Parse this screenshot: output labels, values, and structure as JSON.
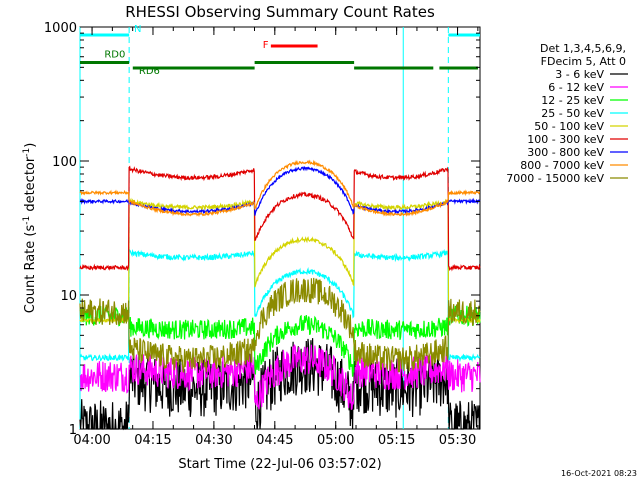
{
  "chart_data": {
    "type": "line",
    "title": "RHESSI Observing Summary Count Rates",
    "xlabel": "Start Time (22-Jul-06 03:57:02)",
    "ylabel_main": "Count Rate (s",
    "ylabel_sup1": "-1",
    "ylabel_mid": " detector",
    "ylabel_sup2": "-1",
    "ylabel_end": ")",
    "y_scale": "log",
    "ylim": [
      1,
      1000
    ],
    "xlim_minutes_after_start": [
      0,
      98.5
    ],
    "x_ticks": [
      {
        "label": "04:00",
        "t": 2.97
      },
      {
        "label": "04:15",
        "t": 17.97
      },
      {
        "label": "04:30",
        "t": 32.97
      },
      {
        "label": "04:45",
        "t": 47.97
      },
      {
        "label": "05:00",
        "t": 62.97
      },
      {
        "label": "05:15",
        "t": 77.97
      },
      {
        "label": "05:30",
        "t": 92.97
      }
    ],
    "y_ticks": [
      {
        "label": "1",
        "v": 1
      },
      {
        "label": "10",
        "v": 10
      },
      {
        "label": "100",
        "v": 100
      },
      {
        "label": "1000",
        "v": 1000
      }
    ],
    "legend_header": [
      "Det 1,3,4,5,6,9,",
      "FDecim 5, Att 0"
    ],
    "series": [
      {
        "name": "3 - 6 keV",
        "color": "#000000"
      },
      {
        "name": "6 - 12 keV",
        "color": "#ff00ff"
      },
      {
        "name": "12 - 25 keV",
        "color": "#00ff00"
      },
      {
        "name": "25 - 50 keV",
        "color": "#00ffff"
      },
      {
        "name": "50 - 100 keV",
        "color": "#d4d400"
      },
      {
        "name": "100 - 300 keV",
        "color": "#e00000"
      },
      {
        "name": "300 - 800 keV",
        "color": "#0000ff"
      },
      {
        "name": "800 - 7000 keV",
        "color": "#ff8c00"
      },
      {
        "name": "7000 - 15000 keV",
        "color": "#8b8b00"
      }
    ],
    "flag_bars": [
      {
        "label": "N",
        "color": "#00ffff",
        "level": 1.0
      },
      {
        "label": "RD0",
        "color": "#007700",
        "level": 0.5
      },
      {
        "label": "RD6",
        "color": "#007700",
        "level": 0.4
      },
      {
        "label": "F",
        "color": "#ff0000",
        "level": 0.8
      }
    ],
    "night_boundaries_t": [
      0,
      12.1,
      79.6,
      90.7
    ]
  },
  "footer": {
    "timestamp": "16-Oct-2021 08:23"
  }
}
